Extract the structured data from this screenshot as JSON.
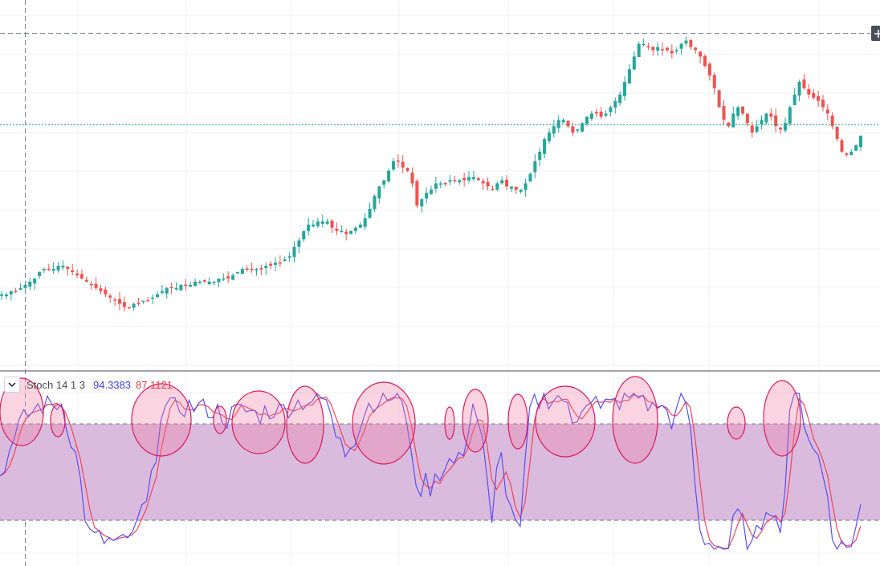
{
  "indicator": {
    "name": "Stoch 14 1 3",
    "k_value": "94.3383",
    "d_value": "87.1121"
  },
  "colors": {
    "up": "#26a69a",
    "down": "#ef5350",
    "k_line": "#5b4ef0",
    "d_line": "#f0455a",
    "band_fill": "#dbbbdd",
    "circle_fill": "rgba(240,120,160,0.32)",
    "circle_stroke": "#d81b60",
    "grid": "#eef0f6",
    "crosshair": "#758696",
    "last_price_line": "#26a69a"
  },
  "chart_data": [
    {
      "type": "candlestick",
      "title": "",
      "xlabel": "",
      "ylabel": "",
      "grid": true,
      "note": "Price pane; y-axis labels not visible. Values are pixel-relative price estimates (higher = higher price), scale 0-100.",
      "ylim": [
        0,
        100
      ],
      "closes": [
        13,
        13,
        14,
        14,
        15,
        16,
        17,
        18,
        20,
        21,
        21,
        21,
        22,
        22,
        21,
        20,
        19,
        18,
        17,
        16,
        15,
        14,
        13,
        12,
        11,
        10,
        9,
        9,
        10,
        10,
        11,
        11,
        12,
        13,
        14,
        15,
        15,
        15,
        16,
        16,
        16,
        17,
        17,
        17,
        17,
        17,
        18,
        18,
        18,
        19,
        20,
        21,
        21,
        21,
        21,
        21,
        22,
        22,
        23,
        23,
        24,
        25,
        28,
        30,
        33,
        35,
        35,
        36,
        36,
        36,
        34,
        33,
        33,
        32,
        33,
        34,
        35,
        37,
        40,
        44,
        47,
        49,
        52,
        55,
        55,
        53,
        52,
        48,
        41,
        43,
        45,
        46,
        48,
        48,
        48,
        49,
        49,
        49,
        49,
        50,
        50,
        49,
        48,
        47,
        46,
        48,
        49,
        47,
        47,
        46,
        46,
        48,
        51,
        55,
        58,
        62,
        64,
        66,
        68,
        68,
        66,
        64,
        65,
        67,
        69,
        70,
        70,
        69,
        70,
        72,
        74,
        76,
        80,
        84,
        88,
        92,
        92,
        91,
        90,
        91,
        90,
        90,
        89,
        90,
        92,
        93,
        91,
        90,
        88,
        85,
        82,
        78,
        72,
        68,
        66,
        70,
        72,
        70,
        67,
        64,
        66,
        68,
        70,
        69,
        66,
        65,
        67,
        72,
        76,
        80,
        78,
        76,
        75,
        74,
        72,
        70,
        66,
        62,
        58,
        57,
        58,
        60,
        63
      ],
      "last_price_level": 63,
      "crosshair_price_level": 91
    },
    {
      "type": "line",
      "title": "Stoch 14 1 3",
      "ylim": [
        0,
        100
      ],
      "bands": {
        "upper": 80,
        "lower": 20
      },
      "series": [
        {
          "name": "%K",
          "color": "#5b4ef0",
          "last": 94.3383
        },
        {
          "name": "%D",
          "color": "#f0455a",
          "last": 87.1121
        }
      ],
      "highlighted_overbought_regions_count": 14
    }
  ]
}
